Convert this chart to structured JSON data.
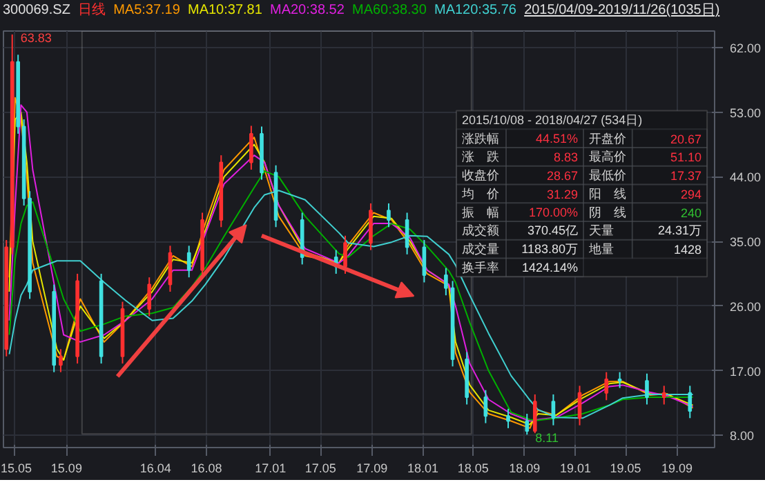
{
  "chart_data": {
    "type": "candlestick",
    "title": "300069.SZ",
    "subtitle": "日线",
    "x": [
      "2015-04-10",
      "2015-04-24",
      "2015-05-08",
      "2015-05-22",
      "2015-06-05",
      "2015-08-02",
      "2015-08-18",
      "2015-09-27",
      "2015-11-23",
      "2016-01-13",
      "2016-03-17",
      "2016-05-06",
      "2016-06-20",
      "2016-07-22",
      "2016-09-05",
      "2016-11-16",
      "2016-12-11",
      "2017-01-14",
      "2017-03-18",
      "2017-06-07",
      "2017-06-29",
      "2017-08-29",
      "2017-10-11",
      "2017-11-24",
      "2018-01-04",
      "2018-02-25",
      "2018-03-13",
      "2018-04-16",
      "2018-05-31",
      "2018-07-24",
      "2018-09-07",
      "2018-09-26",
      "2018-11-09",
      "2019-01-11",
      "2019-03-16",
      "2019-04-17",
      "2019-06-21",
      "2019-08-01",
      "2019-10-02"
    ],
    "ohlc": [
      [
        20,
        35.2,
        19,
        34.2
      ],
      [
        34.2,
        63.83,
        33.2,
        60
      ],
      [
        60,
        61,
        50,
        51
      ],
      [
        51,
        52,
        40,
        41
      ],
      [
        41,
        42,
        27,
        28
      ],
      [
        28,
        29,
        16.8,
        17.8
      ],
      [
        17.8,
        20,
        16.8,
        19
      ],
      [
        19,
        30.5,
        18,
        29.5
      ],
      [
        29.5,
        30.5,
        18,
        19
      ],
      [
        19,
        26.6,
        18,
        25.6
      ],
      [
        25.6,
        30,
        24.6,
        29
      ],
      [
        29,
        34.4,
        28,
        33.4
      ],
      [
        33.4,
        34.4,
        30,
        31
      ],
      [
        31,
        39,
        30,
        38
      ],
      [
        38,
        47,
        37,
        46
      ],
      [
        46,
        51.1,
        45,
        50
      ],
      [
        50,
        51,
        43.6,
        44.6
      ],
      [
        44.6,
        45.6,
        37,
        38
      ],
      [
        38,
        39,
        31.8,
        32.8
      ],
      [
        32.8,
        33.8,
        30.5,
        31.5
      ],
      [
        31.5,
        35.8,
        30.5,
        34.8
      ],
      [
        34.8,
        40.3,
        33.8,
        39.3
      ],
      [
        39.3,
        40.3,
        37,
        38
      ],
      [
        38,
        39,
        33.2,
        34.2
      ],
      [
        34.2,
        35.2,
        29.3,
        30.3
      ],
      [
        30.3,
        31.3,
        27.5,
        28.5
      ],
      [
        28.5,
        29.5,
        17.6,
        18.6
      ],
      [
        18.6,
        19.6,
        12.3,
        13.3
      ],
      [
        13.3,
        14.3,
        9.7,
        10.7
      ],
      [
        10.7,
        11.7,
        9,
        10
      ],
      [
        10,
        11,
        8.11,
        8.6
      ],
      [
        8.6,
        13.7,
        8.3,
        12.7
      ],
      [
        12.7,
        13.7,
        9.4,
        10.4
      ],
      [
        10.4,
        14.9,
        9.4,
        13.9
      ],
      [
        13.9,
        16.8,
        12.9,
        15.8
      ],
      [
        15.8,
        16.8,
        14.6,
        15.6
      ],
      [
        15.6,
        16.6,
        12.3,
        13.3
      ],
      [
        13.3,
        14.9,
        12.3,
        13.9
      ],
      [
        13.9,
        14.9,
        10.4,
        11.4
      ]
    ],
    "series": [
      {
        "name": "MA5:37.19",
        "type": "line",
        "x": [
          "2015-04-17",
          "2015-05-01",
          "2015-05-15",
          "2015-05-29",
          "2015-06-12",
          "2015-08-09",
          "2015-08-25",
          "2015-10-04",
          "2015-11-30",
          "2016-01-20",
          "2016-03-24",
          "2016-05-13",
          "2016-06-27",
          "2016-07-29",
          "2016-09-12",
          "2016-11-23",
          "2016-12-18",
          "2017-01-21",
          "2017-03-25",
          "2017-06-14",
          "2017-07-06",
          "2017-09-05",
          "2017-10-18",
          "2017-12-01",
          "2018-01-11",
          "2018-03-04",
          "2018-03-20",
          "2018-04-23",
          "2018-06-07",
          "2018-07-31",
          "2018-09-14",
          "2018-10-03",
          "2018-11-16",
          "2019-01-18",
          "2019-03-23",
          "2019-04-24",
          "2019-06-28",
          "2019-08-08",
          "2019-10-09"
        ],
        "color": "#ff9900",
        "values": [
          30,
          55,
          52,
          44,
          32,
          19,
          18.5,
          27,
          21,
          24,
          28.5,
          33,
          31.5,
          37.5,
          45,
          49.5,
          45,
          38.5,
          33,
          32,
          34.5,
          39,
          38,
          34.5,
          30.5,
          28.8,
          19.5,
          14,
          11,
          10,
          9,
          11.5,
          10.8,
          13.6,
          15.5,
          15.5,
          13.6,
          13.8,
          11.8
        ]
      },
      {
        "name": "MA10:37.81",
        "type": "line",
        "x": [
          "2015-04-17",
          "2015-05-01",
          "2015-05-15",
          "2015-05-29",
          "2015-06-12",
          "2015-08-09",
          "2015-08-25",
          "2015-10-04",
          "2015-11-30",
          "2016-01-20",
          "2016-03-24",
          "2016-05-13",
          "2016-06-27",
          "2016-07-29",
          "2016-09-12",
          "2016-11-23",
          "2016-12-18",
          "2017-01-21",
          "2017-03-25",
          "2017-06-14",
          "2017-07-06",
          "2017-09-05",
          "2017-10-18",
          "2017-12-01",
          "2018-01-11",
          "2018-03-04",
          "2018-03-20",
          "2018-04-23",
          "2018-06-07",
          "2018-07-31",
          "2018-09-14",
          "2018-10-03",
          "2018-11-16",
          "2019-01-18",
          "2019-03-23",
          "2019-04-24",
          "2019-06-28",
          "2019-08-08",
          "2019-10-09"
        ],
        "color": "#e6e600",
        "values": [
          28,
          52,
          53,
          46,
          35,
          20,
          18.5,
          26,
          21.5,
          24,
          28,
          32.5,
          32,
          36.5,
          44,
          48.5,
          46,
          40,
          33.5,
          32,
          34,
          38.5,
          38.2,
          35,
          31,
          29,
          21,
          15,
          11.5,
          10.5,
          9.5,
          11,
          10.8,
          13.2,
          15.2,
          15.4,
          13.8,
          13.7,
          12.2
        ]
      },
      {
        "name": "MA20:38.52",
        "type": "line",
        "x": [
          "2015-04-17",
          "2015-05-01",
          "2015-05-15",
          "2015-05-29",
          "2015-06-12",
          "2015-08-09",
          "2015-08-25",
          "2015-10-04",
          "2015-11-30",
          "2016-01-20",
          "2016-03-24",
          "2016-05-13",
          "2016-06-27",
          "2016-07-29",
          "2016-09-12",
          "2016-11-23",
          "2016-12-18",
          "2017-01-21",
          "2017-03-25",
          "2017-06-14",
          "2017-07-06",
          "2017-09-05",
          "2017-10-18",
          "2017-12-01",
          "2018-01-11",
          "2018-03-04",
          "2018-03-20",
          "2018-04-23",
          "2018-06-07",
          "2018-07-31",
          "2018-09-14",
          "2018-10-03",
          "2018-11-16",
          "2019-01-18",
          "2019-03-23",
          "2019-04-24",
          "2019-06-28",
          "2019-08-08",
          "2019-10-09"
        ],
        "color": "#e020e0",
        "values": [
          24,
          40,
          54,
          53,
          45,
          27,
          22,
          21,
          22,
          24,
          27,
          31,
          31,
          36,
          43,
          47,
          46,
          40,
          34,
          32,
          33,
          37.5,
          37.5,
          35.5,
          31,
          29,
          26,
          18,
          13,
          11,
          10,
          10.2,
          10.5,
          12.5,
          14.8,
          15,
          14,
          13.5,
          12
        ]
      },
      {
        "name": "MA60:38.30",
        "type": "line",
        "x": [
          "2015-04-17",
          "2015-05-01",
          "2015-05-15",
          "2015-05-29",
          "2015-06-12",
          "2015-08-09",
          "2015-08-25",
          "2015-10-04",
          "2015-11-30",
          "2016-01-20",
          "2016-03-24",
          "2016-05-13",
          "2016-06-27",
          "2016-07-29",
          "2016-09-12",
          "2016-11-23",
          "2016-12-18",
          "2017-01-21",
          "2017-03-25",
          "2017-06-14",
          "2017-07-06",
          "2017-09-05",
          "2017-10-18",
          "2017-12-01",
          "2018-01-11",
          "2018-03-04",
          "2018-03-20",
          "2018-04-23",
          "2018-06-07",
          "2018-07-31",
          "2018-09-14",
          "2018-10-03",
          "2018-11-16",
          "2019-01-18",
          "2019-03-23",
          "2019-04-24",
          "2019-06-28",
          "2019-08-08",
          "2019-10-09"
        ],
        "color": "#00b000",
        "values": [
          22,
          32.5,
          37.5,
          40,
          40.5,
          30,
          27,
          22.5,
          23.5,
          24.6,
          25,
          25.8,
          28.7,
          31.3,
          35.7,
          42.5,
          44.8,
          44,
          38.5,
          33.3,
          32.8,
          35.8,
          37.5,
          36.7,
          34.3,
          30.9,
          29.3,
          23.7,
          17,
          11.2,
          10.2,
          10.1,
          10.4,
          11,
          12.2,
          13,
          13.3,
          13.3,
          13.3
        ]
      },
      {
        "name": "MA120:35.76",
        "type": "line",
        "x": [
          "2015-04-17",
          "2015-05-01",
          "2015-05-15",
          "2015-05-29",
          "2015-06-12",
          "2015-08-09",
          "2015-08-25",
          "2015-10-04",
          "2015-11-30",
          "2016-01-20",
          "2016-03-24",
          "2016-05-13",
          "2016-06-27",
          "2016-07-29",
          "2016-09-12",
          "2016-11-23",
          "2016-12-18",
          "2017-01-21",
          "2017-03-25",
          "2017-06-14",
          "2017-07-06",
          "2017-09-05",
          "2017-10-18",
          "2017-12-01",
          "2018-01-11",
          "2018-03-04",
          "2018-03-20",
          "2018-04-23",
          "2018-06-07",
          "2018-07-31",
          "2018-09-14",
          "2018-10-03",
          "2018-11-16",
          "2019-01-18",
          "2019-03-23",
          "2019-04-24",
          "2019-06-28",
          "2019-08-08",
          "2019-10-09"
        ],
        "color": "#40d0d0",
        "values": [
          19.3,
          24,
          27.5,
          29,
          31,
          32.3,
          32.3,
          32.3,
          29.3,
          26.8,
          24,
          24.3,
          26.7,
          29,
          32.7,
          39.7,
          41.5,
          42.1,
          40.8,
          36.2,
          34.8,
          34.3,
          34.9,
          35.8,
          35.7,
          33.2,
          31.7,
          27.5,
          22.2,
          16.3,
          12.9,
          11.6,
          10.5,
          10.4,
          12.2,
          13.2,
          13.7,
          13.7,
          13.7
        ]
      }
    ],
    "xlim": [
      "2015-04-03",
      "2019-11-30"
    ],
    "ylim": [
      6.3,
      64.3
    ],
    "xticks": [
      {
        "value": "2015-05-01",
        "label": "15.05"
      },
      {
        "value": "2015-09-01",
        "label": "15.09"
      },
      {
        "value": "2016-04-01",
        "label": "16.04"
      },
      {
        "value": "2016-08-01",
        "label": "16.08"
      },
      {
        "value": "2017-01-01",
        "label": "17.01"
      },
      {
        "value": "2017-05-01",
        "label": "17.05"
      },
      {
        "value": "2017-09-01",
        "label": "17.09"
      },
      {
        "value": "2018-01-01",
        "label": "18.01"
      },
      {
        "value": "2018-05-01",
        "label": "18.05"
      },
      {
        "value": "2018-09-01",
        "label": "18.09"
      },
      {
        "value": "2019-01-01",
        "label": "19.01"
      },
      {
        "value": "2019-05-01",
        "label": "19.05"
      },
      {
        "value": "2019-09-01",
        "label": "19.09"
      }
    ],
    "yticks": [
      {
        "value": 8,
        "label": "8.00"
      },
      {
        "value": 17,
        "label": "17.00"
      },
      {
        "value": 26,
        "label": "26.00"
      },
      {
        "value": 35,
        "label": "35.00"
      },
      {
        "value": 44,
        "label": "44.00"
      },
      {
        "value": 53,
        "label": "53.00"
      },
      {
        "value": 62,
        "label": "62.00"
      }
    ],
    "grid": true,
    "legend": "top",
    "annotations": [
      "2015/04/09-2019/11/26(1035日)",
      "63.83",
      "8.11",
      "2015/10/08 - 2018/04/27 (534日)",
      "涨跌幅",
      "44.51%",
      "开盘价",
      "20.67",
      "涨　跌",
      "8.83",
      "最高价",
      "51.10",
      "收盘价",
      "28.67",
      "最低价",
      "17.37",
      "均　价",
      "31.29",
      "阳　线",
      "294",
      "振　幅",
      "170.00%",
      "阴　线",
      "240",
      "成交额",
      "370.45亿",
      "天量",
      "24.31万",
      "成交量",
      "1183.80万",
      "地量",
      "1428",
      "换手率",
      "1424.14%"
    ]
  }
}
